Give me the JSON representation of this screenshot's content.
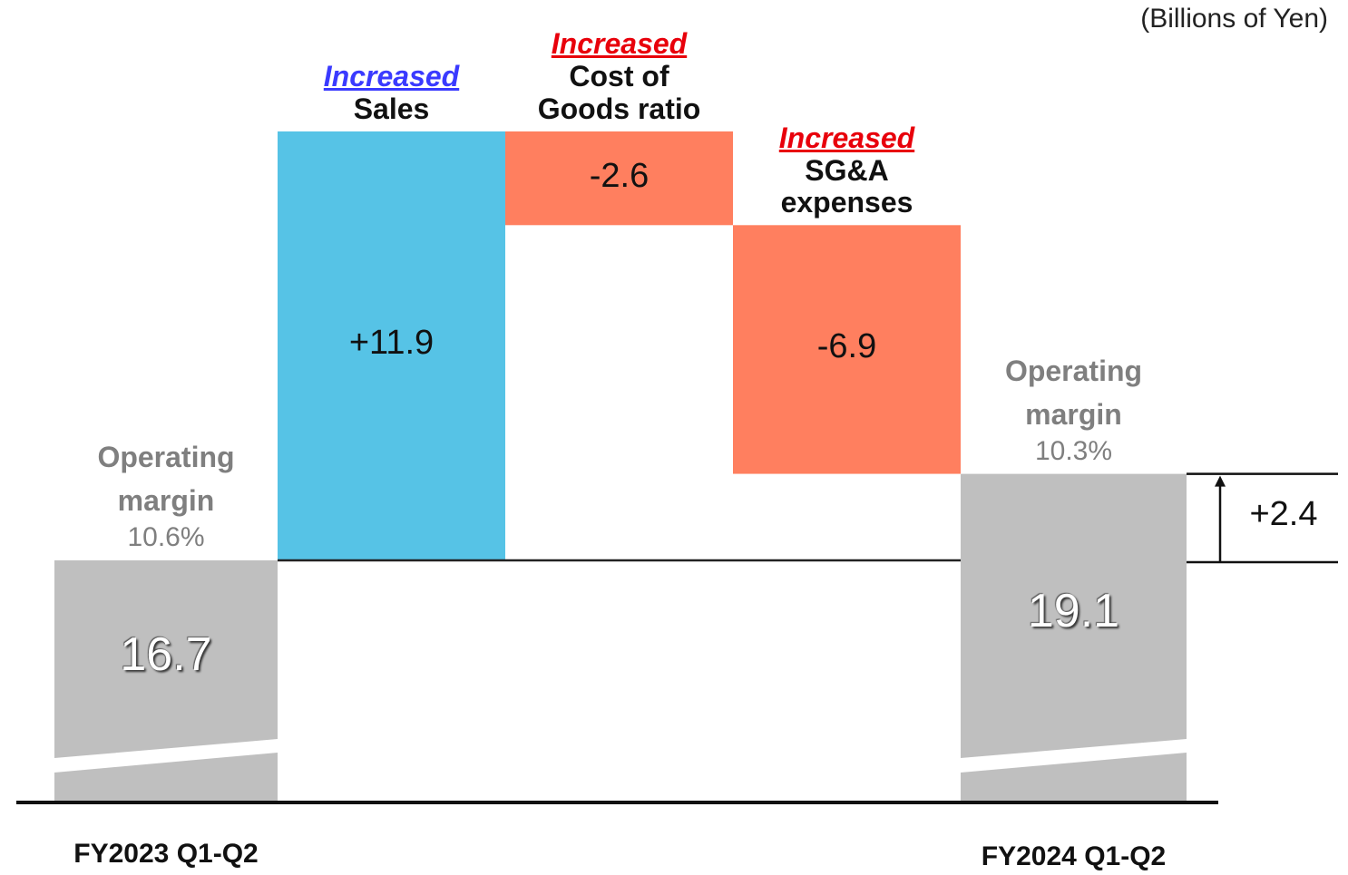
{
  "chart_data": {
    "type": "waterfall",
    "unit": "(Billions of Yen)",
    "categories": [
      "FY2023 Q1-Q2",
      "Sales",
      "Cost of\nGoods ratio",
      "SG&A\nexpenses",
      "FY2024 Q1-Q2"
    ],
    "measures": [
      "total",
      "relative",
      "relative",
      "relative",
      "total"
    ],
    "values": [
      16.7,
      11.9,
      -2.6,
      -6.9,
      19.1
    ],
    "value_labels": [
      "16.7",
      "+11.9",
      "-2.6",
      "-6.9",
      "19.1"
    ],
    "colors": [
      "#bfbfbf",
      "#56c3e6",
      "#ff7f5f",
      "#ff7f5f",
      "#bfbfbf"
    ],
    "qualifiers": [
      null,
      {
        "text": "Increased",
        "color": "#3a3aff"
      },
      {
        "text": "Increased",
        "color": "#e8000b"
      },
      {
        "text": "Increased",
        "color": "#e8000b"
      },
      null
    ],
    "margin_notes": [
      {
        "title": "Operating\nmargin",
        "value": "10.6%"
      },
      null,
      null,
      null,
      {
        "title": "Operating\nmargin",
        "value": "10.3%"
      }
    ],
    "difference": {
      "value": 2.4,
      "label": "+2.4"
    }
  }
}
